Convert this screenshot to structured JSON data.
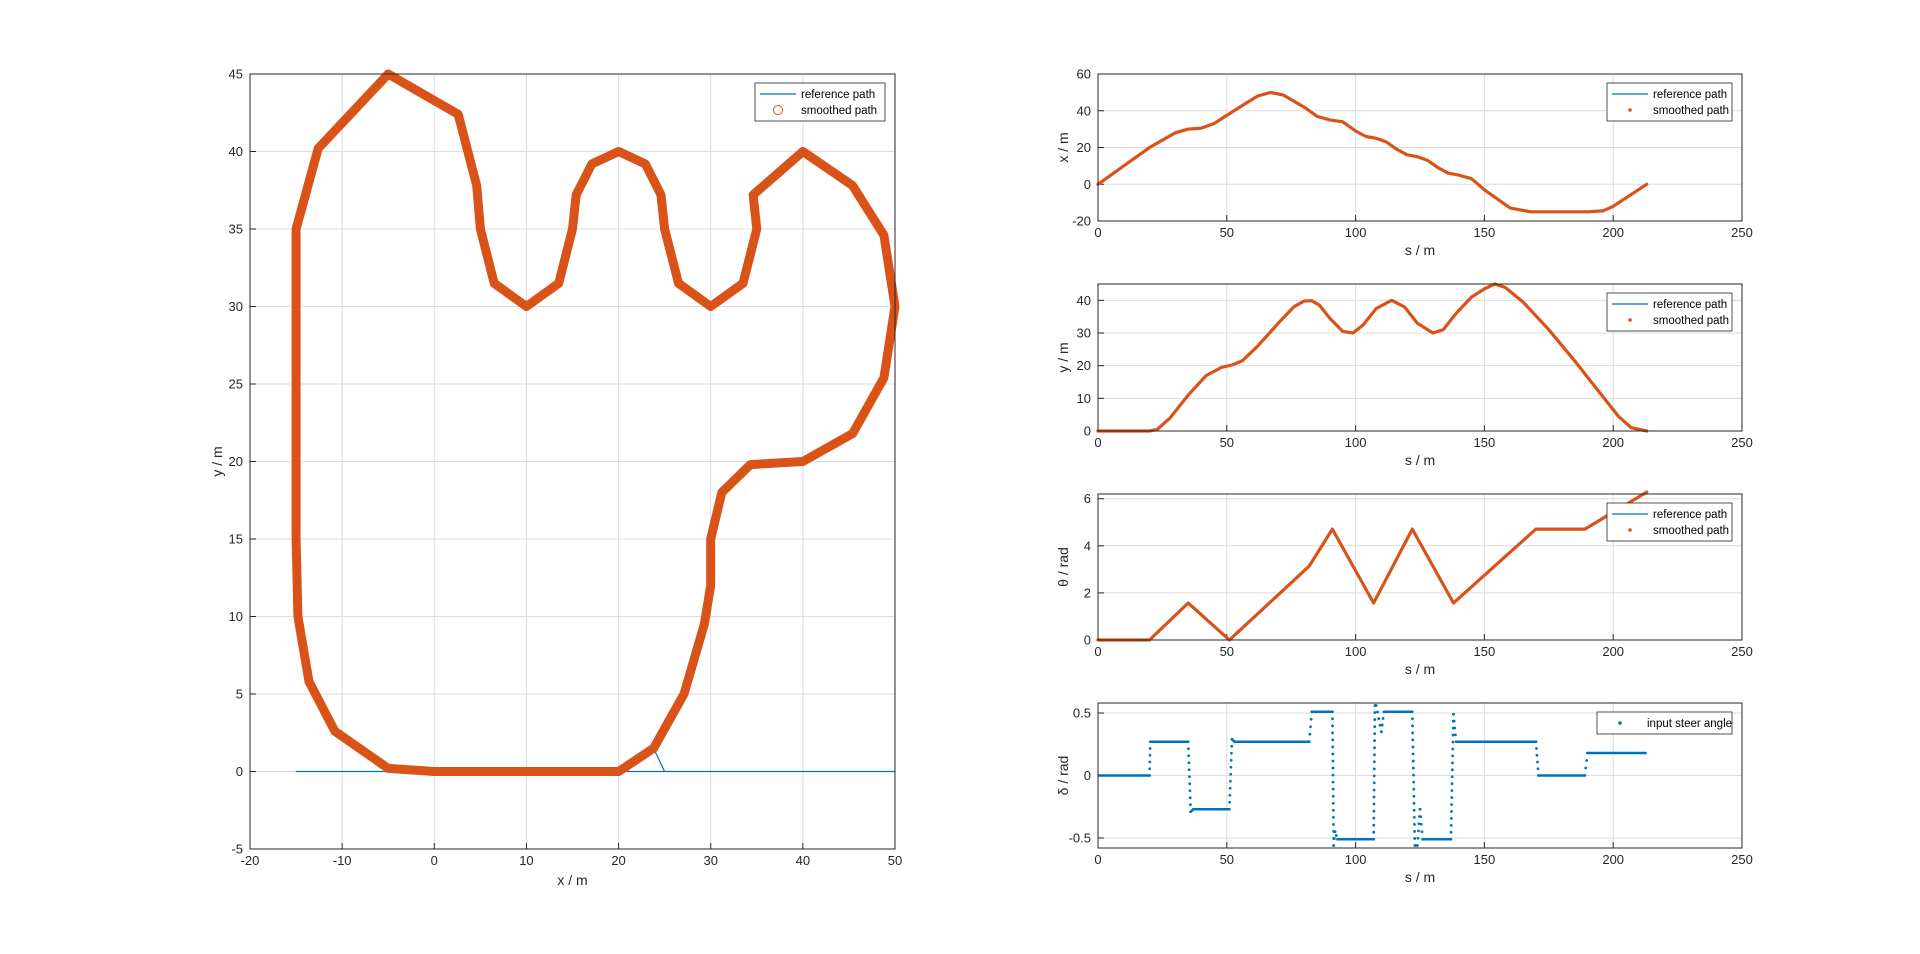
{
  "colors": {
    "reference": "#0072BD",
    "smoothed": "#D95319",
    "steer": "#0072BD",
    "grid": "#dcdcdc",
    "axis": "#262626"
  },
  "chart_data": [
    {
      "id": "xy",
      "type": "line",
      "xlabel": "x / m",
      "ylabel": "y / m",
      "xlim": [
        -20,
        50
      ],
      "ylim": [
        -5,
        45
      ],
      "xticks": [
        "-20",
        "-10",
        "0",
        "10",
        "20",
        "30",
        "40",
        "50"
      ],
      "yticks": [
        "-5",
        "0",
        "5",
        "10",
        "15",
        "20",
        "25",
        "30",
        "35",
        "40",
        "45"
      ],
      "grid": true,
      "legend_position": "top-right",
      "series": [
        {
          "name": "reference path",
          "marker": "line",
          "x": [
            0,
            20,
            23.8,
            25,
            30,
            35,
            36.2,
            40,
            45.4,
            50,
            45.4,
            40,
            33.4,
            30,
            30,
            26.6,
            20,
            10,
            3.6,
            0,
            -10,
            -14.9,
            -15,
            -15,
            -13.6,
            -5,
            2.1,
            5,
            5,
            10,
            15,
            15,
            20,
            25,
            25,
            30,
            35,
            35,
            40,
            50
          ],
          "y": [
            0,
            0,
            1.5,
            0,
            0,
            0,
            0,
            0,
            0,
            0,
            0,
            0,
            0,
            0,
            0,
            0,
            0,
            0,
            0,
            0,
            0,
            0,
            0,
            0,
            0,
            0,
            0,
            0,
            0,
            0,
            0,
            0,
            0,
            0,
            0,
            0,
            0,
            0,
            0,
            0
          ]
        },
        {
          "name": "smoothed path",
          "marker": "circle",
          "x": [
            0,
            20,
            23.8,
            27.1,
            29.3,
            30,
            30,
            31.2,
            34.3,
            40,
            45.4,
            48.8,
            50,
            48.8,
            45.4,
            40,
            34.6,
            35,
            33.5,
            30,
            26.5,
            25,
            24.6,
            22.9,
            20,
            17.1,
            15.4,
            15,
            13.5,
            10,
            6.5,
            5,
            4.6,
            2.6,
            -5,
            -12.6,
            -15,
            -15,
            -14.8,
            -13.6,
            -10.8,
            -5,
            0
          ],
          "y": [
            0,
            0,
            1.5,
            5,
            9.5,
            12,
            15,
            18,
            19.8,
            20,
            21.8,
            25.4,
            30,
            34.6,
            37.8,
            40,
            37.2,
            35,
            31.5,
            30,
            31.5,
            35,
            37.2,
            39.2,
            40,
            39.2,
            37.2,
            35,
            31.5,
            30,
            31.5,
            35,
            37.8,
            42.4,
            45,
            40.2,
            35,
            15,
            10,
            5.8,
            2.6,
            0.2,
            0
          ]
        }
      ]
    },
    {
      "id": "xs",
      "type": "line",
      "xlabel": "s / m",
      "ylabel": "x / m",
      "xlim": [
        0,
        250
      ],
      "ylim": [
        -20,
        60
      ],
      "xticks": [
        "0",
        "50",
        "100",
        "150",
        "200",
        "250"
      ],
      "yticks": [
        "-20",
        "0",
        "20",
        "40",
        "60"
      ],
      "grid": true,
      "legend_position": "top-right",
      "series": [
        {
          "name": "reference path",
          "marker": "line",
          "x": [
            0,
            20,
            30,
            35,
            40,
            45,
            55,
            62,
            67,
            72,
            80,
            85,
            90,
            95,
            100,
            104,
            108,
            112,
            116,
            120,
            124,
            128,
            132,
            136,
            140,
            145,
            150,
            160,
            168,
            180,
            190,
            196,
            200,
            213
          ],
          "y": [
            0,
            20,
            28,
            30,
            30.5,
            33,
            42,
            48,
            50,
            48.5,
            42,
            37,
            35,
            34,
            29,
            26,
            25,
            23,
            19,
            16,
            15,
            13,
            9,
            6,
            5,
            3,
            -3,
            -13,
            -15,
            -15,
            -15,
            -14.5,
            -12,
            0
          ]
        },
        {
          "name": "smoothed path",
          "marker": "dot",
          "x": [
            0,
            20,
            30,
            35,
            40,
            45,
            55,
            62,
            67,
            72,
            80,
            85,
            90,
            95,
            100,
            104,
            108,
            112,
            116,
            120,
            124,
            128,
            132,
            136,
            140,
            145,
            150,
            160,
            168,
            180,
            190,
            196,
            200,
            213
          ],
          "y": [
            0,
            20,
            28,
            30,
            30.5,
            33,
            42,
            48,
            50,
            48.5,
            42,
            37,
            35,
            34,
            29,
            26,
            25,
            23,
            19,
            16,
            15,
            13,
            9,
            6,
            5,
            3,
            -3,
            -13,
            -15,
            -15,
            -15,
            -14.5,
            -12,
            0
          ]
        }
      ]
    },
    {
      "id": "ys",
      "type": "line",
      "xlabel": "s / m",
      "ylabel": "y / m",
      "xlim": [
        0,
        250
      ],
      "ylim": [
        0,
        45
      ],
      "xticks": [
        "0",
        "50",
        "100",
        "150",
        "200",
        "250"
      ],
      "yticks": [
        "0",
        "10",
        "20",
        "30",
        "40"
      ],
      "grid": true,
      "legend_position": "top-right",
      "series": [
        {
          "name": "reference path",
          "marker": "line",
          "x": [
            0,
            20,
            23,
            28,
            35,
            42,
            48,
            52,
            56,
            62,
            70,
            76,
            80,
            83,
            86,
            90,
            95,
            99,
            103,
            108,
            114,
            119,
            124,
            130,
            134,
            139,
            145,
            150,
            154,
            158,
            165,
            175,
            185,
            195,
            202,
            207,
            213
          ],
          "y": [
            0,
            0,
            0.5,
            4,
            11,
            17,
            19.5,
            20.2,
            21.5,
            26,
            33,
            38,
            39.8,
            39.9,
            38.5,
            34.5,
            30.5,
            30,
            32.5,
            37.5,
            40,
            38,
            33,
            30,
            31,
            36,
            41,
            43.5,
            45,
            44,
            39.5,
            31,
            21.5,
            11.5,
            4.5,
            1,
            0
          ]
        },
        {
          "name": "smoothed path",
          "marker": "dot",
          "x": [
            0,
            20,
            23,
            28,
            35,
            42,
            48,
            52,
            56,
            62,
            70,
            76,
            80,
            83,
            86,
            90,
            95,
            99,
            103,
            108,
            114,
            119,
            124,
            130,
            134,
            139,
            145,
            150,
            154,
            158,
            165,
            175,
            185,
            195,
            202,
            207,
            213
          ],
          "y": [
            0,
            0,
            0.5,
            4,
            11,
            17,
            19.5,
            20.2,
            21.5,
            26,
            33,
            38,
            39.8,
            39.9,
            38.5,
            34.5,
            30.5,
            30,
            32.5,
            37.5,
            40,
            38,
            33,
            30,
            31,
            36,
            41,
            43.5,
            45,
            44,
            39.5,
            31,
            21.5,
            11.5,
            4.5,
            1,
            0
          ]
        }
      ]
    },
    {
      "id": "thetas",
      "type": "line",
      "xlabel": "s / m",
      "ylabel": "θ / rad",
      "xlim": [
        0,
        250
      ],
      "ylim": [
        0,
        6.2
      ],
      "xticks": [
        "0",
        "50",
        "100",
        "150",
        "200",
        "250"
      ],
      "yticks": [
        "0",
        "2",
        "4",
        "6"
      ],
      "grid": true,
      "legend_position": "top-right",
      "series": [
        {
          "name": "reference path",
          "marker": "line",
          "x": [
            0,
            20,
            35,
            51,
            82,
            91,
            107,
            122,
            138,
            170,
            189,
            213
          ],
          "y": [
            0,
            0,
            1.57,
            0,
            3.14,
            4.71,
            1.57,
            4.71,
            1.57,
            4.71,
            4.71,
            6.28
          ]
        },
        {
          "name": "smoothed path",
          "marker": "dot",
          "x": [
            0,
            20,
            35,
            51,
            82,
            91,
            107,
            122,
            138,
            170,
            189,
            213
          ],
          "y": [
            0,
            0,
            1.57,
            0,
            3.14,
            4.71,
            1.57,
            4.71,
            1.57,
            4.71,
            4.71,
            6.28
          ]
        }
      ]
    },
    {
      "id": "deltas",
      "type": "scatter",
      "xlabel": "s / m",
      "ylabel": "δ / rad",
      "xlim": [
        0,
        250
      ],
      "ylim": [
        -0.58,
        0.58
      ],
      "xticks": [
        "0",
        "50",
        "100",
        "150",
        "200",
        "250"
      ],
      "yticks": [
        "-0.5",
        "0",
        "0.5"
      ],
      "grid": true,
      "legend_position": "top-right",
      "series": [
        {
          "name": "input steer angle",
          "marker": "dot",
          "x": [
            0,
            20,
            20.3,
            35,
            36,
            37,
            51,
            52,
            53,
            82,
            83,
            91,
            91.5,
            92,
            93,
            107,
            107.5,
            108,
            110,
            111,
            122,
            123,
            124,
            125,
            126,
            137,
            138,
            139,
            170,
            171,
            189,
            190,
            213
          ],
          "y": [
            0,
            0,
            0.27,
            0.27,
            -0.29,
            -0.27,
            -0.27,
            0.29,
            0.27,
            0.27,
            0.51,
            0.51,
            -0.56,
            -0.45,
            -0.51,
            -0.51,
            0.56,
            0.56,
            0.35,
            0.51,
            0.51,
            -0.56,
            -0.56,
            -0.27,
            -0.51,
            -0.51,
            0.49,
            0.27,
            0.27,
            0,
            0,
            0.18,
            0.18
          ]
        }
      ]
    }
  ]
}
